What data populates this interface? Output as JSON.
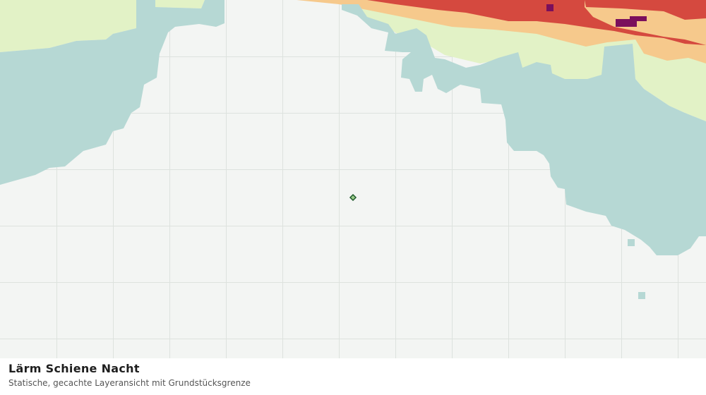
{
  "map": {
    "title": "Lärm Schiene Nacht",
    "subtitle": "Statische, gecachte Layeransicht mit Grundstücksgrenze"
  }
}
